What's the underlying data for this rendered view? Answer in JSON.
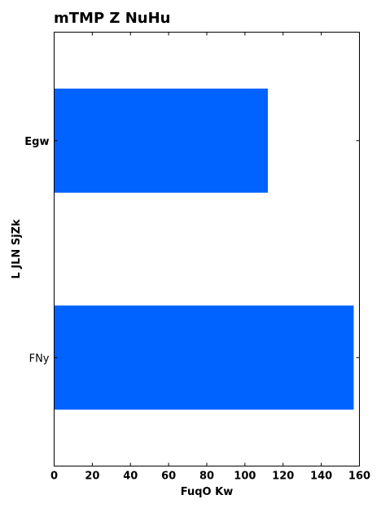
{
  "chart_data": {
    "type": "bar",
    "orientation": "horizontal",
    "title": "mTMP  Z NuHu",
    "xlabel": "FuqO Kw",
    "ylabel": "L JLN SjZk",
    "categories": [
      "Egw",
      "FNy"
    ],
    "values": [
      112,
      157
    ],
    "xlim": [
      0,
      160
    ],
    "xticks": [
      0,
      20,
      40,
      60,
      80,
      100,
      120,
      140,
      160
    ],
    "bar_color": "#0062ff",
    "grid": false,
    "legend": "none"
  }
}
